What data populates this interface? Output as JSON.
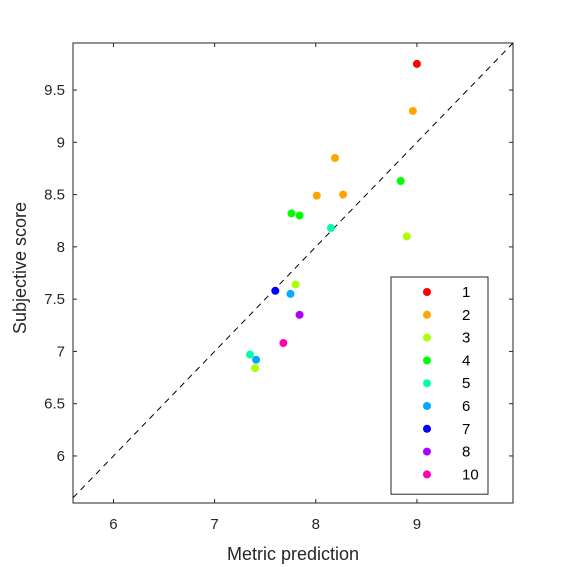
{
  "chart_data": {
    "type": "scatter",
    "xlabel": "Metric prediction",
    "ylabel": "Subjective score",
    "xlim": [
      5.6,
      9.95
    ],
    "ylim": [
      5.55,
      9.95
    ],
    "xticks": [
      6,
      7,
      8,
      9
    ],
    "yticks": [
      6,
      6.5,
      7,
      7.5,
      8,
      8.5,
      9,
      9.5
    ],
    "grid": false,
    "reference_line": "y = x (dashed)",
    "legend_position": "bottom-right",
    "series": [
      {
        "name": "1",
        "color": "#ff0000",
        "points": [
          [
            9.0,
            9.75
          ]
        ]
      },
      {
        "name": "2",
        "color": "#ffa500",
        "points": [
          [
            8.96,
            9.3
          ],
          [
            8.19,
            8.85
          ],
          [
            8.01,
            8.49
          ],
          [
            8.27,
            8.5
          ]
        ]
      },
      {
        "name": "3",
        "color": "#aaff00",
        "points": [
          [
            8.9,
            8.1
          ],
          [
            7.8,
            7.64
          ],
          [
            7.4,
            6.84
          ]
        ]
      },
      {
        "name": "4",
        "color": "#00ff00",
        "points": [
          [
            8.84,
            8.63
          ],
          [
            7.76,
            8.32
          ],
          [
            7.84,
            8.3
          ]
        ]
      },
      {
        "name": "5",
        "color": "#00ffaa",
        "points": [
          [
            8.15,
            8.18
          ],
          [
            7.35,
            6.97
          ]
        ]
      },
      {
        "name": "6",
        "color": "#00aaff",
        "points": [
          [
            7.75,
            7.55
          ],
          [
            7.41,
            6.92
          ]
        ]
      },
      {
        "name": "7",
        "color": "#0000ff",
        "points": [
          [
            7.6,
            7.58
          ]
        ]
      },
      {
        "name": "8",
        "color": "#aa00ff",
        "points": [
          [
            7.84,
            7.35
          ]
        ]
      },
      {
        "name": "10",
        "color": "#ff00aa",
        "points": [
          [
            7.68,
            7.08
          ]
        ]
      }
    ]
  }
}
